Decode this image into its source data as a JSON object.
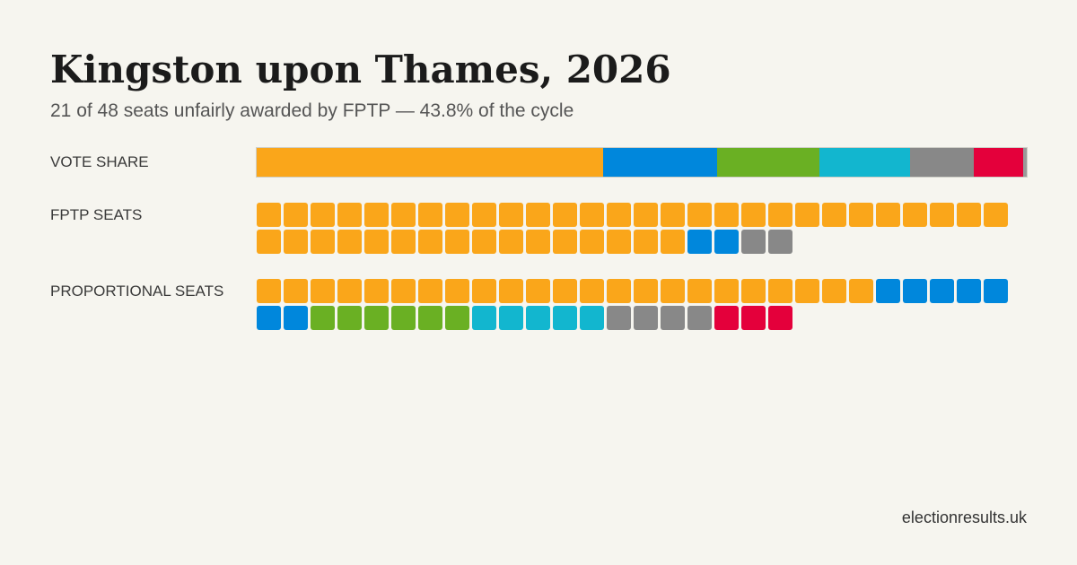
{
  "title": "Kingston upon Thames, 2026",
  "subtitle": "21 of 48 seats unfairly awarded by FPTP — 43.8% of the cycle",
  "footer": "electionresults.uk",
  "labels": {
    "vote_share": "VOTE SHARE",
    "fptp_seats": "FPTP SEATS",
    "proportional_seats": "PROPORTIONAL SEATS"
  },
  "chart_data": {
    "type": "bar",
    "parties": [
      {
        "color": "#faa61a",
        "vote_share": 45.0,
        "fptp_seats": 44,
        "proportional_seats": 23
      },
      {
        "color": "#0087dc",
        "vote_share": 14.8,
        "fptp_seats": 2,
        "proportional_seats": 7
      },
      {
        "color": "#6ab023",
        "vote_share": 13.3,
        "fptp_seats": 0,
        "proportional_seats": 6
      },
      {
        "color": "#12b6cf",
        "vote_share": 11.7,
        "fptp_seats": 0,
        "proportional_seats": 5
      },
      {
        "color": "#888888",
        "vote_share": 8.3,
        "fptp_seats": 2,
        "proportional_seats": 4
      },
      {
        "color": "#e4003b",
        "vote_share": 6.4,
        "fptp_seats": 0,
        "proportional_seats": 3
      },
      {
        "color": "#999999",
        "vote_share": 0.5,
        "fptp_seats": 0,
        "proportional_seats": 0
      }
    ],
    "total_seats": 48,
    "unfair_seats": 21,
    "unfair_percent": 43.8
  }
}
